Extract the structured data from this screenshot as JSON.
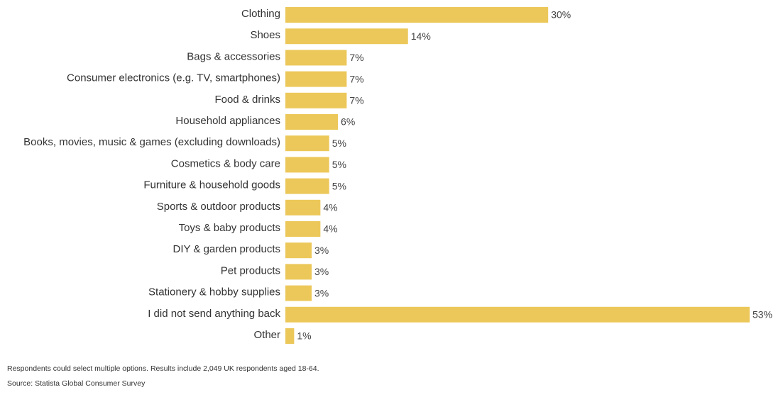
{
  "chart_data": {
    "type": "bar",
    "orientation": "horizontal",
    "categories": [
      "Clothing",
      "Shoes",
      "Bags & accessories",
      "Consumer electronics (e.g. TV, smartphones)",
      "Food & drinks",
      "Household appliances",
      "Books, movies, music & games (excluding downloads)",
      "Cosmetics & body care",
      "Furniture & household goods",
      "Sports & outdoor products",
      "Toys & baby products",
      "DIY & garden products",
      "Pet products",
      "Stationery & hobby supplies",
      "I did not send anything back",
      "Other"
    ],
    "values": [
      30,
      14,
      7,
      7,
      7,
      6,
      5,
      5,
      5,
      4,
      4,
      3,
      3,
      3,
      53,
      1
    ],
    "value_suffix": "%",
    "bar_color": "#ecc85a",
    "xlim": [
      0,
      53
    ],
    "grid": false,
    "legend": "none"
  },
  "footer": {
    "note": "Respondents could select multiple options. Results include 2,049 UK respondents aged 18-64.",
    "source": "Source: Statista Global Consumer Survey"
  }
}
